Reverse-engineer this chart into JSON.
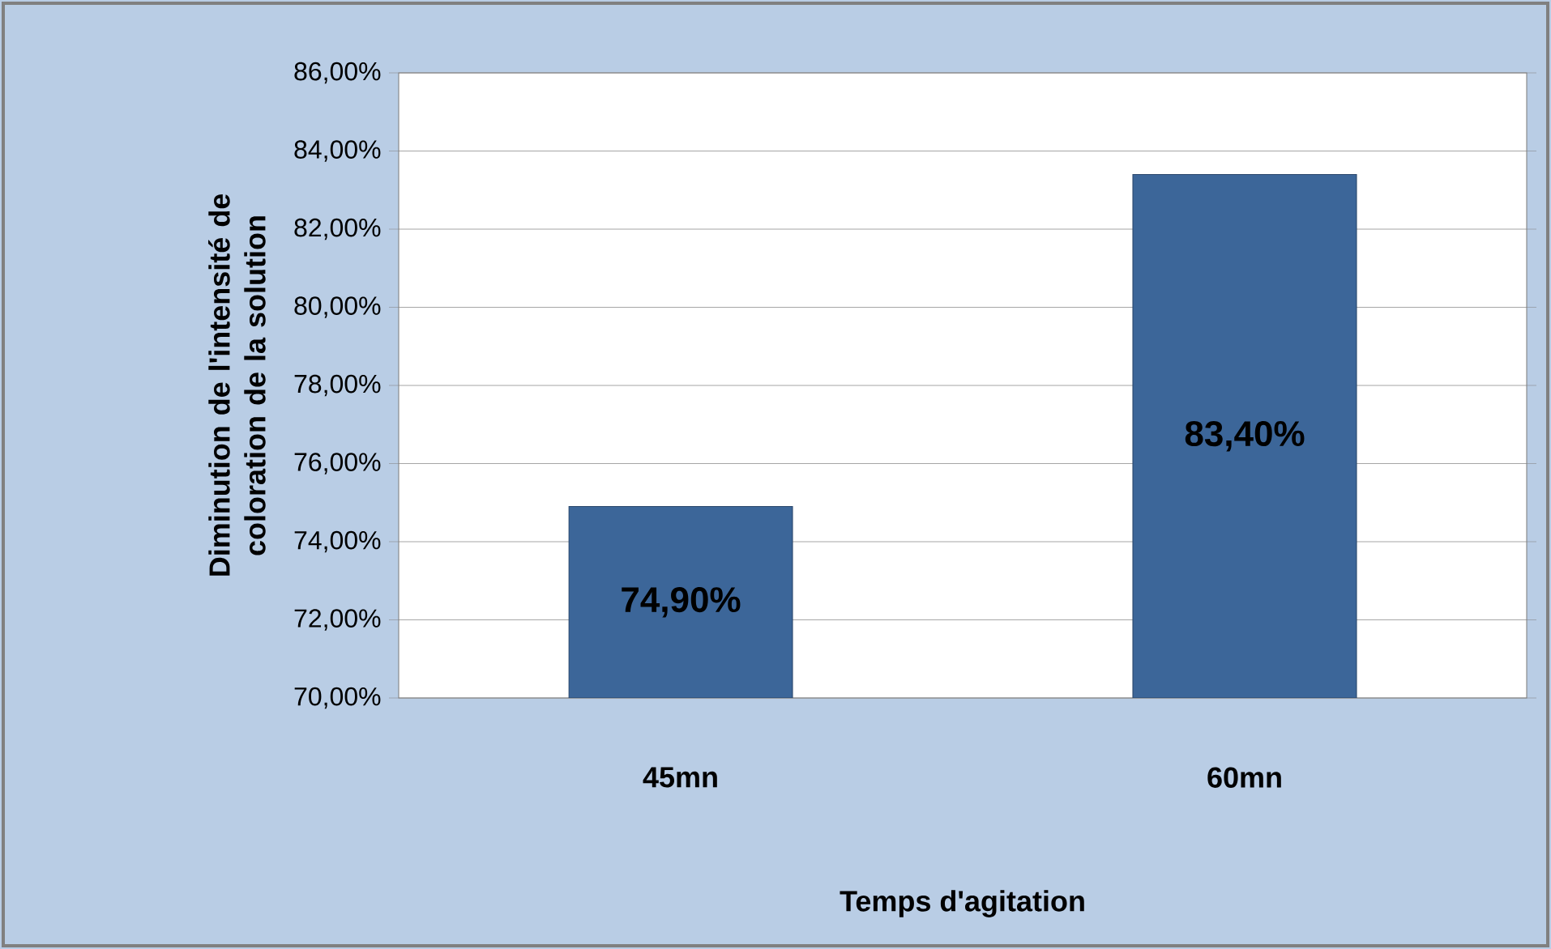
{
  "chart_data": {
    "type": "bar",
    "xlabel": "Temps d'agitation",
    "ylabel": "Diminution de l'intensité de coloration de la solution",
    "categories": [
      "45mn",
      "60mn"
    ],
    "values": [
      74.9,
      83.4
    ],
    "value_labels": [
      "74,90%",
      "83,40%"
    ],
    "color": "#3c6699",
    "ylim": [
      70,
      86
    ],
    "yticks": [
      {
        "value": 70,
        "label": "70,00%"
      },
      {
        "value": 72,
        "label": "72,00%"
      },
      {
        "value": 74,
        "label": "74,00%"
      },
      {
        "value": 76,
        "label": "76,00%"
      },
      {
        "value": 78,
        "label": "78,00%"
      },
      {
        "value": 80,
        "label": "80,00%"
      },
      {
        "value": 82,
        "label": "82,00%"
      },
      {
        "value": 84,
        "label": "84,00%"
      },
      {
        "value": 86,
        "label": "86,00%"
      }
    ],
    "grid": "y"
  }
}
